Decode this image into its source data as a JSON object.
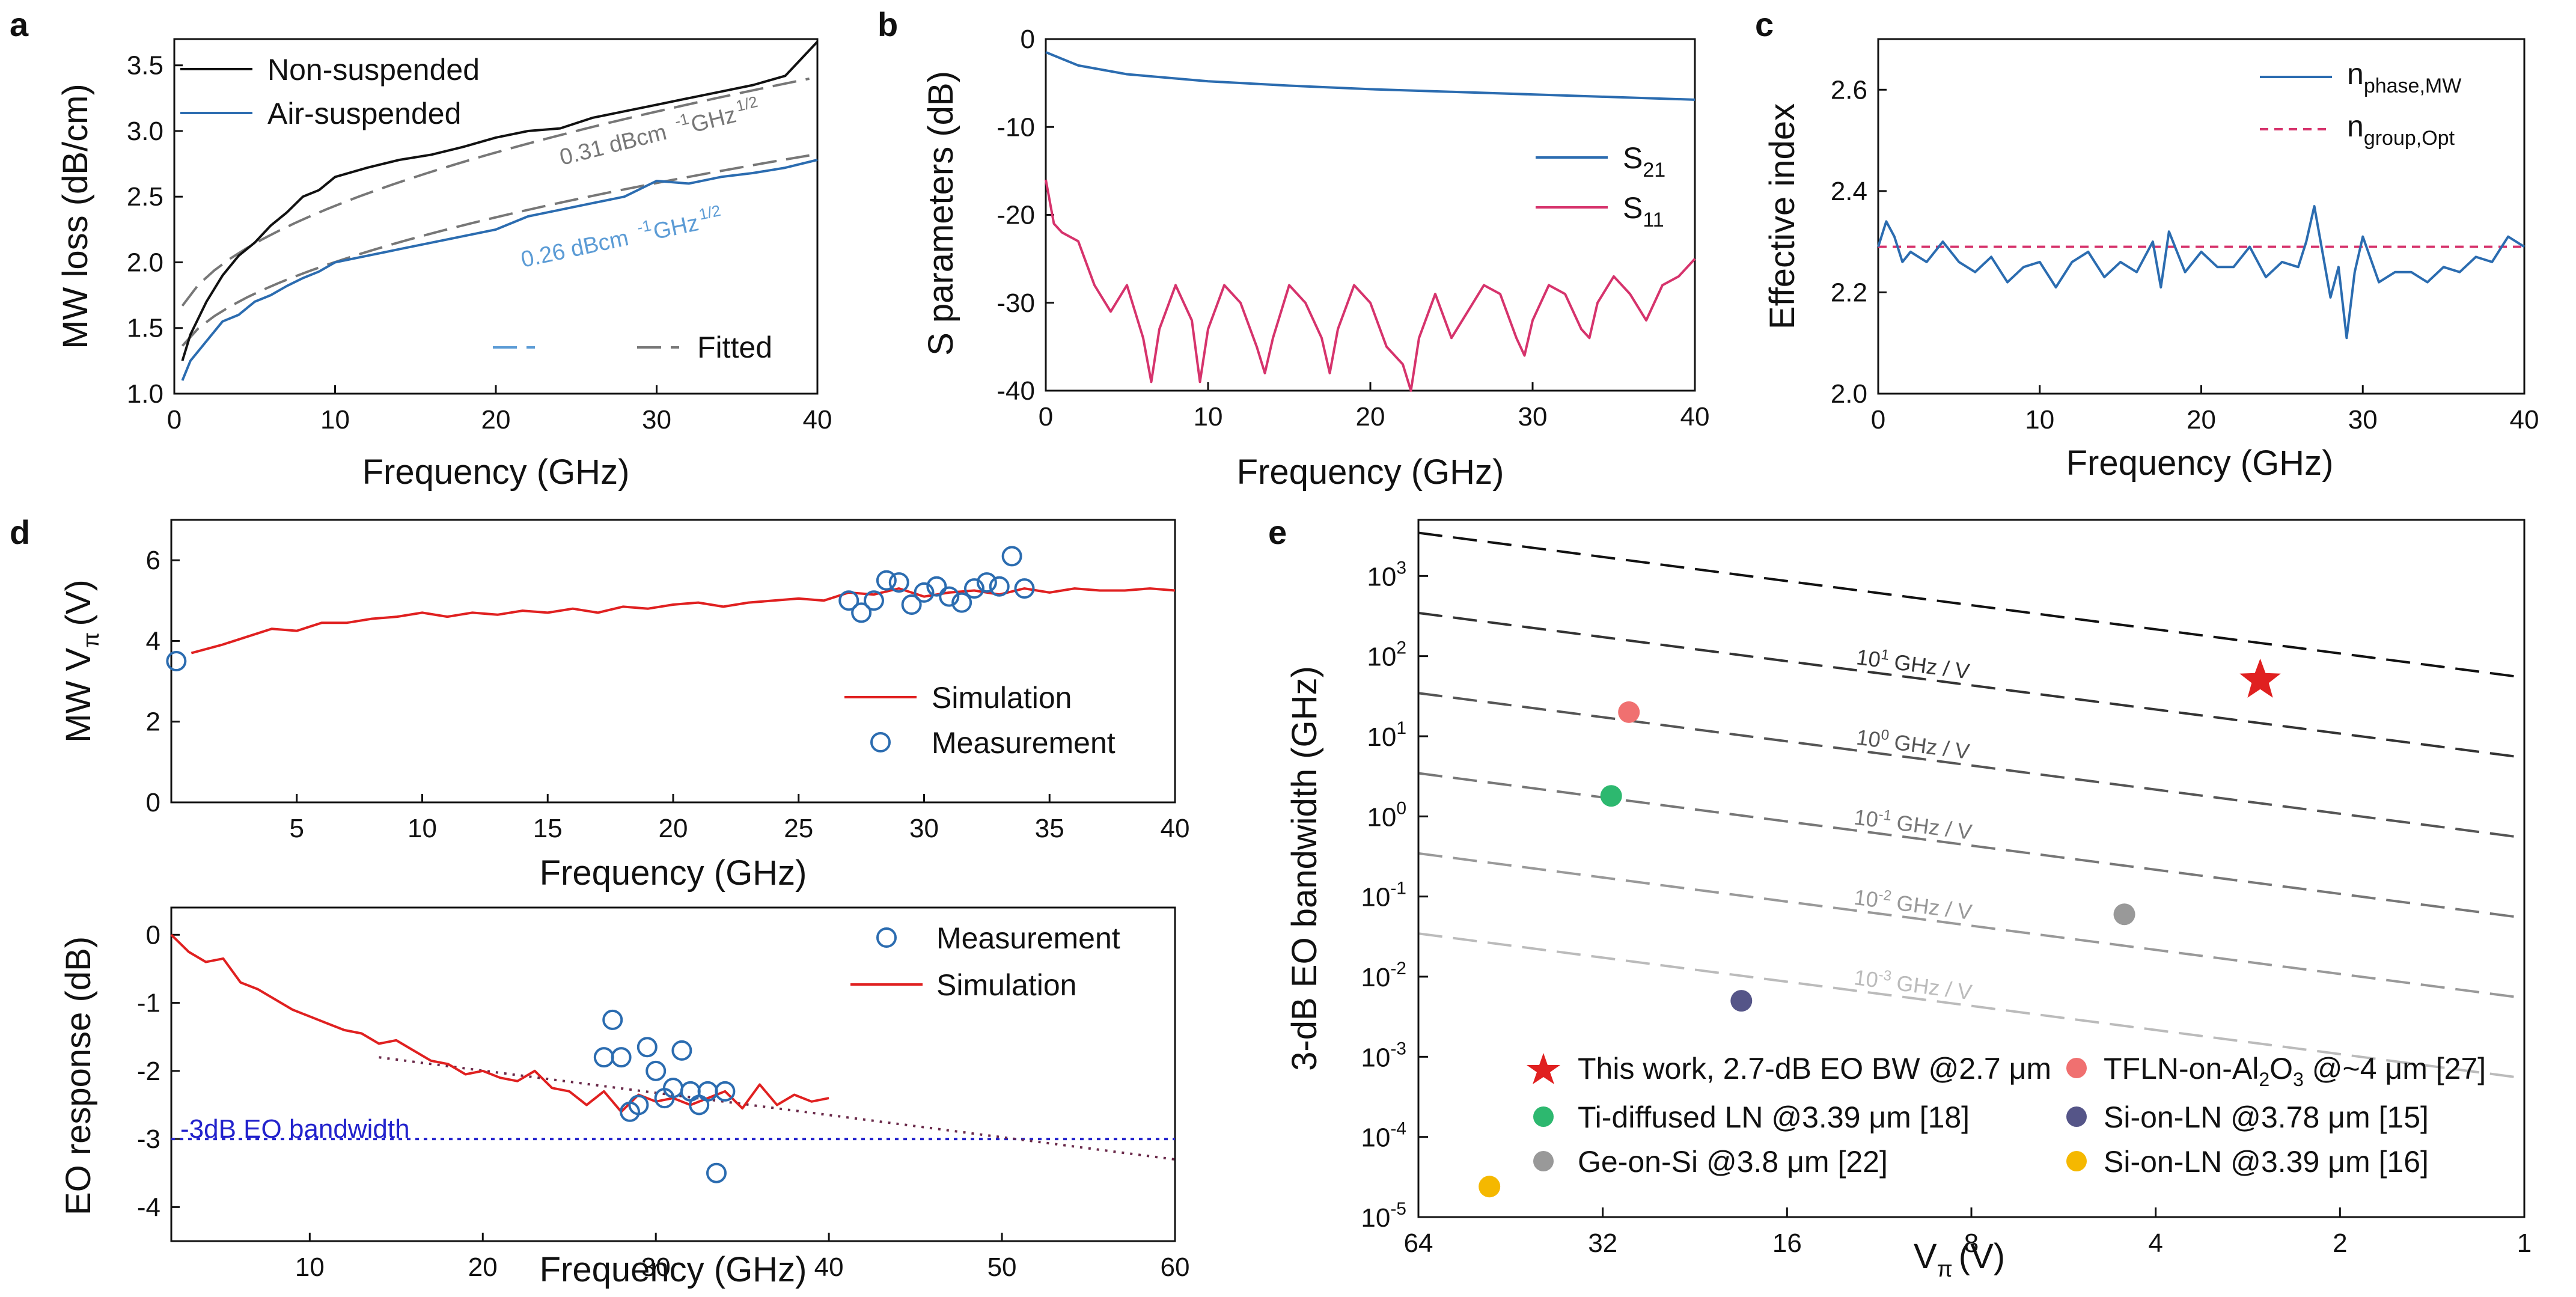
{
  "colors": {
    "black": "#111111",
    "blue": "#2b6cb0",
    "lightblue": "#5b9bd5",
    "pink": "#d6336c",
    "red": "#e02020",
    "gray": "#777777",
    "navy": "#2222cc",
    "green": "#2db86f",
    "salmon": "#f07070",
    "purple": "#555588",
    "midgray": "#999999",
    "gold": "#f5b800"
  },
  "chart_data": [
    {
      "id": "a",
      "panel_label": "a",
      "type": "line",
      "xlabel": "Frequency (GHz)",
      "ylabel": "MW loss (dB/cm)",
      "xlim": [
        0,
        40
      ],
      "ylim": [
        1.0,
        3.7
      ],
      "xticks": [
        "0",
        "10",
        "20",
        "30",
        "40"
      ],
      "yticks": [
        "1.0",
        "1.5",
        "2.0",
        "2.5",
        "3.0",
        "3.5"
      ],
      "series": [
        {
          "name": "Non-suspended",
          "x": [
            0.5,
            1,
            2,
            3,
            4,
            5,
            6,
            7,
            8,
            9,
            10,
            12,
            14,
            16,
            18,
            20,
            22,
            24,
            26,
            28,
            30,
            32,
            34,
            36,
            38,
            40
          ],
          "values": [
            1.25,
            1.45,
            1.7,
            1.9,
            2.05,
            2.15,
            2.28,
            2.38,
            2.5,
            2.55,
            2.65,
            2.72,
            2.78,
            2.82,
            2.88,
            2.95,
            3.0,
            3.02,
            3.1,
            3.15,
            3.2,
            3.25,
            3.3,
            3.35,
            3.42,
            3.68
          ]
        },
        {
          "name": "Air-suspended",
          "x": [
            0.5,
            1,
            2,
            3,
            4,
            5,
            6,
            7,
            8,
            9,
            10,
            12,
            14,
            16,
            18,
            20,
            22,
            24,
            26,
            28,
            30,
            32,
            34,
            36,
            38,
            40
          ],
          "values": [
            1.1,
            1.25,
            1.4,
            1.55,
            1.6,
            1.7,
            1.75,
            1.82,
            1.88,
            1.93,
            2.0,
            2.05,
            2.1,
            2.15,
            2.2,
            2.25,
            2.35,
            2.4,
            2.45,
            2.5,
            2.62,
            2.6,
            2.65,
            2.68,
            2.72,
            2.78
          ]
        }
      ],
      "fit_lines": [
        {
          "name": "Fitted",
          "coefficient": 0.31,
          "offset": 1.45
        },
        {
          "name": "Fitted",
          "coefficient": 0.26,
          "offset": 1.18
        }
      ],
      "annotations": [
        "0.31 dBcm",
        "-1",
        "GHz",
        "1/2",
        "0.26 dBcm",
        "-1",
        "GHz",
        "1/2"
      ],
      "legend": [
        "Non-suspended",
        "Air-suspended",
        "Fitted"
      ]
    },
    {
      "id": "b",
      "panel_label": "b",
      "type": "line",
      "xlabel": "Frequency (GHz)",
      "ylabel": "S parameters (dB)",
      "xlim": [
        0,
        40
      ],
      "ylim": [
        -40,
        0
      ],
      "xticks": [
        "0",
        "10",
        "20",
        "30",
        "40"
      ],
      "yticks": [
        "0",
        "-10",
        "-20",
        "-30",
        "-40"
      ],
      "series": [
        {
          "name": "S21",
          "x": [
            0,
            2,
            5,
            10,
            15,
            20,
            25,
            30,
            35,
            40
          ],
          "values": [
            -1.5,
            -3.0,
            -4.0,
            -4.8,
            -5.3,
            -5.7,
            -6.0,
            -6.3,
            -6.6,
            -6.9
          ]
        },
        {
          "name": "S11",
          "x": [
            0,
            0.5,
            1,
            2,
            3,
            4,
            5,
            6,
            6.5,
            7,
            8,
            9,
            9.5,
            10,
            11,
            12,
            13,
            13.5,
            14,
            15,
            16,
            17,
            17.5,
            18,
            19,
            20,
            21,
            22,
            22.5,
            23,
            24,
            25,
            26,
            27,
            28,
            29,
            29.5,
            30,
            31,
            32,
            33,
            33.5,
            34,
            35,
            36,
            37,
            38,
            39,
            40
          ],
          "values": [
            -16,
            -21,
            -22,
            -23,
            -28,
            -31,
            -28,
            -34,
            -39,
            -33,
            -28,
            -32,
            -39,
            -33,
            -28,
            -30,
            -35,
            -38,
            -34,
            -28,
            -30,
            -34,
            -38,
            -33,
            -28,
            -30,
            -35,
            -37,
            -40,
            -34,
            -29,
            -34,
            -31,
            -28,
            -29,
            -34,
            -36,
            -32,
            -28,
            -29,
            -33,
            -34,
            -30,
            -27,
            -29,
            -32,
            -28,
            -27,
            -25
          ]
        }
      ],
      "legend": [
        "S",
        "21",
        "S",
        "11"
      ]
    },
    {
      "id": "c",
      "panel_label": "c",
      "type": "line",
      "xlabel": "Frequency (GHz)",
      "ylabel": "Effective index",
      "xlim": [
        0,
        40
      ],
      "ylim": [
        2.0,
        2.7
      ],
      "xticks": [
        "0",
        "10",
        "20",
        "30",
        "40"
      ],
      "yticks": [
        "2.0",
        "2.2",
        "2.4",
        "2.6"
      ],
      "series": [
        {
          "name": "n_phase,MW",
          "x": [
            0,
            0.5,
            1,
            1.5,
            2,
            3,
            4,
            5,
            6,
            7,
            8,
            9,
            10,
            11,
            12,
            13,
            14,
            15,
            16,
            17,
            17.5,
            18,
            19,
            20,
            21,
            22,
            23,
            24,
            25,
            26,
            26.5,
            27,
            27.5,
            28,
            28.5,
            29,
            29.5,
            30,
            31,
            32,
            33,
            34,
            35,
            36,
            37,
            38,
            39,
            40
          ],
          "values": [
            2.29,
            2.34,
            2.31,
            2.26,
            2.28,
            2.26,
            2.3,
            2.26,
            2.24,
            2.27,
            2.22,
            2.25,
            2.26,
            2.21,
            2.26,
            2.28,
            2.23,
            2.26,
            2.24,
            2.3,
            2.21,
            2.32,
            2.24,
            2.28,
            2.25,
            2.25,
            2.29,
            2.23,
            2.26,
            2.25,
            2.3,
            2.37,
            2.28,
            2.19,
            2.25,
            2.11,
            2.24,
            2.31,
            2.22,
            2.24,
            2.24,
            2.22,
            2.25,
            2.24,
            2.27,
            2.26,
            2.31,
            2.29
          ]
        },
        {
          "name": "n_group,Opt",
          "x": [
            0,
            40
          ],
          "values": [
            2.29,
            2.29
          ]
        }
      ],
      "legend": [
        "n",
        "phase,MW",
        "n",
        "group,Opt"
      ]
    },
    {
      "id": "d1",
      "panel_label": "d",
      "type": "line",
      "xlabel": "Frequency (GHz)",
      "ylabel": "MW V",
      "ylabel_sub": "π",
      "ylabel_unit": "(V)",
      "xlim": [
        0,
        40
      ],
      "ylim": [
        0,
        7
      ],
      "xticks": [
        "5",
        "10",
        "15",
        "20",
        "25",
        "30",
        "35",
        "40"
      ],
      "yticks": [
        "0",
        "2",
        "4",
        "6"
      ],
      "series": [
        {
          "name": "Simulation",
          "x": [
            0.8,
            2,
            3,
            4,
            5,
            6,
            7,
            8,
            9,
            10,
            11,
            12,
            13,
            14,
            15,
            16,
            17,
            18,
            19,
            20,
            21,
            22,
            23,
            24,
            25,
            26,
            27,
            28,
            29,
            30,
            31,
            32,
            33,
            34,
            35,
            36,
            37,
            38,
            39,
            40
          ],
          "values": [
            3.7,
            3.9,
            4.1,
            4.3,
            4.25,
            4.45,
            4.45,
            4.55,
            4.6,
            4.7,
            4.6,
            4.7,
            4.65,
            4.75,
            4.7,
            4.8,
            4.7,
            4.85,
            4.8,
            4.9,
            4.95,
            4.85,
            4.95,
            5.0,
            5.05,
            5.0,
            5.2,
            5.15,
            5.3,
            5.1,
            5.2,
            5.25,
            5.15,
            5.3,
            5.2,
            5.3,
            5.25,
            5.25,
            5.3,
            5.25
          ]
        },
        {
          "name": "Measurement",
          "x": [
            0.2,
            27,
            27.5,
            28,
            28.5,
            29,
            29.5,
            30,
            30.5,
            31,
            31.5,
            32,
            32.5,
            33,
            33.5,
            34
          ],
          "values": [
            3.5,
            5.0,
            4.7,
            5.0,
            5.5,
            5.45,
            4.9,
            5.2,
            5.35,
            5.1,
            4.95,
            5.3,
            5.45,
            5.35,
            6.1,
            5.3
          ]
        }
      ],
      "legend": [
        "Simulation",
        "Measurement"
      ]
    },
    {
      "id": "d2",
      "type": "line",
      "xlabel": "Frequency (GHz)",
      "ylabel": "EO response (dB)",
      "xlim": [
        2,
        60
      ],
      "ylim": [
        -4.5,
        0.4
      ],
      "xticks": [
        "10",
        "20",
        "30",
        "40",
        "50",
        "60"
      ],
      "yticks": [
        "0",
        "-1",
        "-2",
        "-3",
        "-4"
      ],
      "series": [
        {
          "name": "Simulation",
          "x": [
            2,
            3,
            4,
            5,
            6,
            7,
            8,
            9,
            10,
            11,
            12,
            13,
            14,
            15,
            16,
            17,
            18,
            19,
            20,
            21,
            22,
            23,
            24,
            25,
            26,
            27,
            28,
            29,
            30,
            31,
            32,
            33,
            34,
            35,
            36,
            37,
            38,
            39,
            40
          ],
          "values": [
            0.0,
            -0.25,
            -0.4,
            -0.35,
            -0.7,
            -0.8,
            -0.95,
            -1.1,
            -1.2,
            -1.3,
            -1.4,
            -1.45,
            -1.6,
            -1.55,
            -1.7,
            -1.85,
            -1.9,
            -2.05,
            -2.0,
            -2.1,
            -2.15,
            -2.0,
            -2.25,
            -2.3,
            -2.5,
            -2.3,
            -2.6,
            -2.35,
            -2.45,
            -2.4,
            -2.5,
            -2.4,
            -2.3,
            -2.55,
            -2.2,
            -2.5,
            -2.35,
            -2.45,
            -2.4
          ]
        },
        {
          "name": "Measurement",
          "x": [
            27,
            27.5,
            28,
            28.5,
            29,
            29.5,
            30,
            30.5,
            31,
            31.5,
            32,
            32.5,
            33,
            33.5,
            34
          ],
          "values": [
            -1.8,
            -1.25,
            -1.8,
            -2.6,
            -2.5,
            -1.65,
            -2.0,
            -2.4,
            -2.25,
            -1.7,
            -2.3,
            -2.5,
            -2.3,
            -3.5,
            -2.3
          ]
        },
        {
          "name": "Fit",
          "x": [
            14,
            60
          ],
          "values": [
            -1.8,
            -3.3
          ]
        }
      ],
      "reference_line": {
        "label": "-3dB EO bandwidth",
        "value": -3
      },
      "legend": [
        "Measurement",
        "Simulation"
      ]
    },
    {
      "id": "e",
      "panel_label": "e",
      "type": "scatter",
      "xlabel": "V",
      "xlabel_sub": "π",
      "xlabel_unit": "(V)",
      "ylabel": "3-dB EO bandwidth (GHz)",
      "x_scale": "log2-reversed",
      "xlim": [
        64,
        1
      ],
      "ylim_log10": [
        -5,
        3.7
      ],
      "xticks": [
        "64",
        "32",
        "16",
        "8",
        "4",
        "2",
        "1"
      ],
      "yticks_exp": [
        "-5",
        "-4",
        "-3",
        "-2",
        "-1",
        "0",
        "1",
        "2",
        "3"
      ],
      "ytick_base": "10",
      "iso_lines": [
        {
          "exponent": 2,
          "label": ""
        },
        {
          "exponent": 1,
          "label": "10",
          "sup": "1",
          "unit": "GHz / V"
        },
        {
          "exponent": 0,
          "label": "10",
          "sup": "0",
          "unit": "GHz / V"
        },
        {
          "exponent": -1,
          "label": "10",
          "sup": "-1",
          "unit": "GHz / V"
        },
        {
          "exponent": -2,
          "label": "10",
          "sup": "-2",
          "unit": "GHz / V"
        },
        {
          "exponent": -3,
          "label": "10",
          "sup": "-3",
          "unit": "GHz / V"
        }
      ],
      "points": [
        {
          "name": "This work, 2.7-dB EO BW @2.7 μm",
          "vpi": 2.7,
          "bw": 50,
          "marker": "star",
          "color": "#e02020"
        },
        {
          "name": "TFLN-on-Al",
          "sub": "2",
          "name2": "O",
          "sub2": "3",
          "name3": " @~4 μm [27]",
          "vpi": 29,
          "bw": 20,
          "marker": "circle",
          "color": "#f07070"
        },
        {
          "name": "Ti-diffused LN @3.39 μm [18]",
          "vpi": 31,
          "bw": 1.8,
          "marker": "circle",
          "color": "#2db86f"
        },
        {
          "name": "Si-on-LN @3.78 μm [15]",
          "vpi": 19,
          "bw": 0.005,
          "marker": "circle",
          "color": "#555588"
        },
        {
          "name": "Ge-on-Si @3.8 μm [22]",
          "vpi": 4.5,
          "bw": 0.06,
          "marker": "circle",
          "color": "#999999"
        },
        {
          "name": "Si-on-LN @3.39 μm [16]",
          "vpi": 49,
          "bw": 2.4e-05,
          "marker": "circle",
          "color": "#f5b800"
        }
      ]
    }
  ]
}
